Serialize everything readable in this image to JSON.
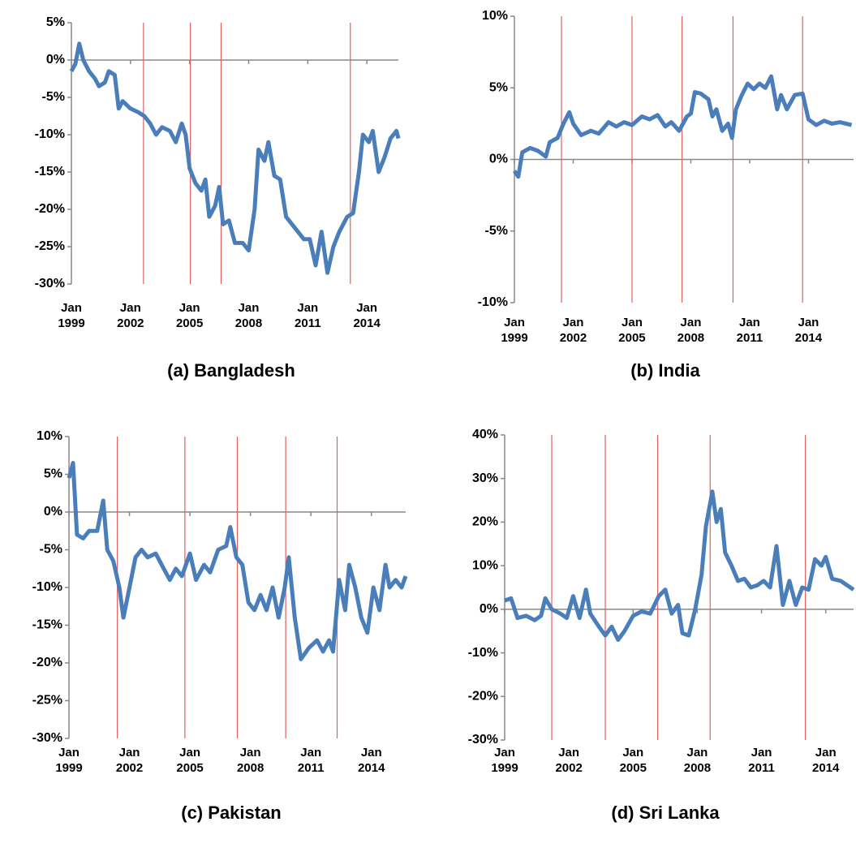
{
  "chart_data": [
    {
      "type": "line",
      "title": "(a) Bangladesh",
      "x": [
        1999.0,
        1999.2,
        1999.4,
        1999.6,
        1999.9,
        2000.2,
        2000.4,
        2000.7,
        2000.9,
        2001.2,
        2001.4,
        2001.6,
        2002.0,
        2002.4,
        2002.7,
        2003.0,
        2003.3,
        2003.6,
        2004.0,
        2004.3,
        2004.6,
        2004.8,
        2005.0,
        2005.3,
        2005.6,
        2005.8,
        2006.0,
        2006.3,
        2006.5,
        2006.7,
        2007.0,
        2007.3,
        2007.7,
        2008.0,
        2008.3,
        2008.5,
        2008.8,
        2009.0,
        2009.3,
        2009.6,
        2009.9,
        2010.2,
        2010.5,
        2010.8,
        2011.1,
        2011.4,
        2011.7,
        2012.0,
        2012.3,
        2012.6,
        2013.0,
        2013.3,
        2013.6,
        2013.8,
        2014.1,
        2014.3,
        2014.6,
        2014.9,
        2015.2,
        2015.5,
        2015.6
      ],
      "series": [
        {
          "color": "#4a7ebb",
          "values": [
            -1.5,
            -0.5,
            2.2,
            0,
            -1.5,
            -2.5,
            -3.5,
            -3,
            -1.5,
            -2,
            -6.5,
            -5.5,
            -6.5,
            -7,
            -7.5,
            -8.5,
            -10,
            -9,
            -9.5,
            -11,
            -8.5,
            -10,
            -14.5,
            -16.5,
            -17.5,
            -16,
            -21,
            -19.5,
            -17,
            -22,
            -21.5,
            -24.5,
            -24.5,
            -25.5,
            -20,
            -12,
            -13.5,
            -11,
            -15.5,
            -16,
            -21,
            -22,
            -23,
            -24,
            -24,
            -27.5,
            -23,
            -28.5,
            -25,
            -23,
            -21,
            -20.5,
            -15,
            -10,
            -11,
            -9.5,
            -15,
            -13,
            -10.5,
            -9.5,
            -10.5
          ]
        }
      ],
      "vlines": [
        2002.66,
        2005.04,
        2006.6,
        2013.16
      ],
      "vline_color": "#e06060",
      "xlim": [
        1999,
        2015.6
      ],
      "xticks": [
        {
          "value": 1999,
          "label": "Jan 1999"
        },
        {
          "value": 2002,
          "label": "Jan 2002"
        },
        {
          "value": 2005,
          "label": "Jan 2005"
        },
        {
          "value": 2008,
          "label": "Jan 2008"
        },
        {
          "value": 2011,
          "label": "Jan 2011"
        },
        {
          "value": 2014,
          "label": "Jan 2014"
        }
      ],
      "ylim": [
        -30,
        5
      ],
      "yticks": [
        {
          "value": 5,
          "label": "5%"
        },
        {
          "value": 0,
          "label": "0%"
        },
        {
          "value": -5,
          "label": "-5%"
        },
        {
          "value": -10,
          "label": "-10%"
        },
        {
          "value": -15,
          "label": "-15%"
        },
        {
          "value": -20,
          "label": "-20%"
        },
        {
          "value": -25,
          "label": "-25%"
        },
        {
          "value": -30,
          "label": "-30%"
        }
      ]
    },
    {
      "type": "line",
      "title": "(b) India",
      "x": [
        1999.0,
        1999.2,
        1999.4,
        1999.8,
        2000.2,
        2000.6,
        2000.8,
        2001.2,
        2001.5,
        2001.8,
        2002.0,
        2002.4,
        2002.9,
        2003.3,
        2003.8,
        2004.2,
        2004.6,
        2005.0,
        2005.5,
        2005.9,
        2006.3,
        2006.7,
        2007.0,
        2007.4,
        2007.8,
        2008.0,
        2008.2,
        2008.5,
        2008.9,
        2009.1,
        2009.3,
        2009.6,
        2009.9,
        2010.1,
        2010.3,
        2010.6,
        2010.9,
        2011.2,
        2011.5,
        2011.8,
        2012.1,
        2012.4,
        2012.6,
        2012.9,
        2013.3,
        2013.7,
        2014.0,
        2014.4,
        2014.8,
        2015.2,
        2015.6,
        2016.2
      ],
      "series": [
        {
          "color": "#4a7ebb",
          "values": [
            -0.8,
            -1.2,
            0.5,
            0.8,
            0.6,
            0.2,
            1.2,
            1.5,
            2.5,
            3.3,
            2.5,
            1.7,
            2,
            1.8,
            2.6,
            2.3,
            2.6,
            2.4,
            3,
            2.8,
            3.1,
            2.3,
            2.6,
            2,
            3,
            3.2,
            4.7,
            4.6,
            4.2,
            3,
            3.5,
            2,
            2.5,
            1.5,
            3.5,
            4.5,
            5.3,
            4.9,
            5.3,
            5,
            5.8,
            3.5,
            4.5,
            3.5,
            4.5,
            4.6,
            2.8,
            2.4,
            2.7,
            2.5,
            2.6,
            2.4
          ]
        }
      ],
      "vlines": [
        2001.4,
        2005.0,
        2007.55,
        2010.15,
        2013.7
      ],
      "vline_color": "#e06060",
      "xlim": [
        1999,
        2016.3
      ],
      "xticks": [
        {
          "value": 1999,
          "label": "Jan 1999"
        },
        {
          "value": 2002,
          "label": "Jan 2002"
        },
        {
          "value": 2005,
          "label": "Jan 2005"
        },
        {
          "value": 2008,
          "label": "Jan 2008"
        },
        {
          "value": 2011,
          "label": "Jan 2011"
        },
        {
          "value": 2014,
          "label": "Jan 2014"
        }
      ],
      "ylim": [
        -10,
        10
      ],
      "yticks": [
        {
          "value": 10,
          "label": "10%"
        },
        {
          "value": 5,
          "label": "5%"
        },
        {
          "value": 0,
          "label": "0%"
        },
        {
          "value": -5,
          "label": "-5%"
        },
        {
          "value": -10,
          "label": "-10%"
        }
      ]
    },
    {
      "type": "line",
      "title": "(c) Pakistan",
      "x": [
        1999.0,
        1999.2,
        1999.4,
        1999.7,
        2000.0,
        2000.4,
        2000.7,
        2000.9,
        2001.2,
        2001.5,
        2001.7,
        2002.0,
        2002.3,
        2002.6,
        2002.9,
        2003.3,
        2003.7,
        2004.0,
        2004.3,
        2004.6,
        2005.0,
        2005.3,
        2005.7,
        2006.0,
        2006.4,
        2006.8,
        2007.0,
        2007.3,
        2007.6,
        2007.9,
        2008.2,
        2008.5,
        2008.8,
        2009.1,
        2009.4,
        2009.7,
        2009.9,
        2010.2,
        2010.5,
        2010.9,
        2011.3,
        2011.6,
        2011.9,
        2012.1,
        2012.4,
        2012.7,
        2012.9,
        2013.2,
        2013.5,
        2013.8,
        2014.1,
        2014.4,
        2014.7,
        2014.9,
        2015.2,
        2015.5,
        2015.7
      ],
      "series": [
        {
          "color": "#4a7ebb",
          "values": [
            4.5,
            6.5,
            -3,
            -3.5,
            -2.5,
            -2.5,
            1.5,
            -5,
            -6.5,
            -10,
            -14,
            -10,
            -6,
            -5,
            -6,
            -5.5,
            -7.5,
            -9,
            -7.5,
            -8.5,
            -5.5,
            -9,
            -7,
            -8,
            -5,
            -4.5,
            -2,
            -6,
            -7,
            -12,
            -13,
            -11,
            -13,
            -10,
            -14,
            -10,
            -6,
            -14,
            -19.5,
            -18,
            -17,
            -18.5,
            -17,
            -18.5,
            -9,
            -13,
            -7,
            -10,
            -14,
            -16,
            -10,
            -13,
            -7,
            -10,
            -9,
            -10,
            -8.5
          ]
        }
      ],
      "vlines": [
        2001.4,
        2004.75,
        2007.35,
        2009.75,
        2012.3
      ],
      "vline_color": "#e06060",
      "xlim": [
        1999,
        2015.7
      ],
      "xticks": [
        {
          "value": 1999,
          "label": "Jan 1999"
        },
        {
          "value": 2002,
          "label": "Jan 2002"
        },
        {
          "value": 2005,
          "label": "Jan 2005"
        },
        {
          "value": 2008,
          "label": "Jan 2008"
        },
        {
          "value": 2011,
          "label": "Jan 2011"
        },
        {
          "value": 2014,
          "label": "Jan 2014"
        }
      ],
      "ylim": [
        -30,
        10
      ],
      "yticks": [
        {
          "value": 10,
          "label": "10%"
        },
        {
          "value": 5,
          "label": "5%"
        },
        {
          "value": 0,
          "label": "0%"
        },
        {
          "value": -5,
          "label": "-5%"
        },
        {
          "value": -10,
          "label": "-10%"
        },
        {
          "value": -15,
          "label": "-15%"
        },
        {
          "value": -20,
          "label": "-20%"
        },
        {
          "value": -25,
          "label": "-25%"
        },
        {
          "value": -30,
          "label": "-30%"
        }
      ]
    },
    {
      "type": "line",
      "title": "(d) Sri Lanka",
      "x": [
        1999.0,
        1999.3,
        1999.6,
        2000.0,
        2000.4,
        2000.7,
        2000.9,
        2001.2,
        2001.6,
        2001.9,
        2002.2,
        2002.5,
        2002.8,
        2003.0,
        2003.4,
        2003.7,
        2004.0,
        2004.3,
        2004.6,
        2005.0,
        2005.4,
        2005.8,
        2006.2,
        2006.5,
        2006.8,
        2007.1,
        2007.3,
        2007.6,
        2007.9,
        2008.2,
        2008.4,
        2008.7,
        2008.9,
        2009.1,
        2009.3,
        2009.6,
        2009.9,
        2010.2,
        2010.5,
        2010.8,
        2011.1,
        2011.4,
        2011.7,
        2012.0,
        2012.3,
        2012.6,
        2012.9,
        2013.2,
        2013.5,
        2013.8,
        2014.0,
        2014.3,
        2014.7,
        2015.0,
        2015.3
      ],
      "series": [
        {
          "color": "#4a7ebb",
          "values": [
            2,
            2.5,
            -2,
            -1.5,
            -2.5,
            -1.5,
            2.5,
            0,
            -1,
            -2,
            3,
            -2,
            4.5,
            -1,
            -4,
            -6,
            -4,
            -7,
            -5,
            -1.5,
            -0.5,
            -1,
            3,
            4.5,
            -1,
            1,
            -5.5,
            -6,
            0,
            8,
            19,
            27,
            20,
            23,
            13,
            10,
            6.5,
            7,
            5,
            5.5,
            6.5,
            5,
            14.5,
            1,
            6.5,
            1,
            5,
            4.5,
            11.5,
            10,
            12,
            7,
            6.5,
            5.5,
            4.5
          ]
        }
      ],
      "vlines": [
        2001.2,
        2003.7,
        2006.15,
        2008.6,
        2013.05
      ],
      "vline_color": "#e06060",
      "xlim": [
        1999,
        2015.3
      ],
      "xticks": [
        {
          "value": 1999,
          "label": "Jan 1999"
        },
        {
          "value": 2002,
          "label": "Jan 2002"
        },
        {
          "value": 2005,
          "label": "Jan 2005"
        },
        {
          "value": 2008,
          "label": "Jan 2008"
        },
        {
          "value": 2011,
          "label": "Jan 2011"
        },
        {
          "value": 2014,
          "label": "Jan 2014"
        }
      ],
      "ylim": [
        -30,
        40
      ],
      "yticks": [
        {
          "value": 40,
          "label": "40%"
        },
        {
          "value": 30,
          "label": "30%"
        },
        {
          "value": 20,
          "label": "20%"
        },
        {
          "value": 10,
          "label": "10%"
        },
        {
          "value": 0,
          "label": "0%"
        },
        {
          "value": -10,
          "label": "-10%"
        },
        {
          "value": -20,
          "label": "-20%"
        },
        {
          "value": -30,
          "label": "-30%"
        }
      ]
    }
  ]
}
